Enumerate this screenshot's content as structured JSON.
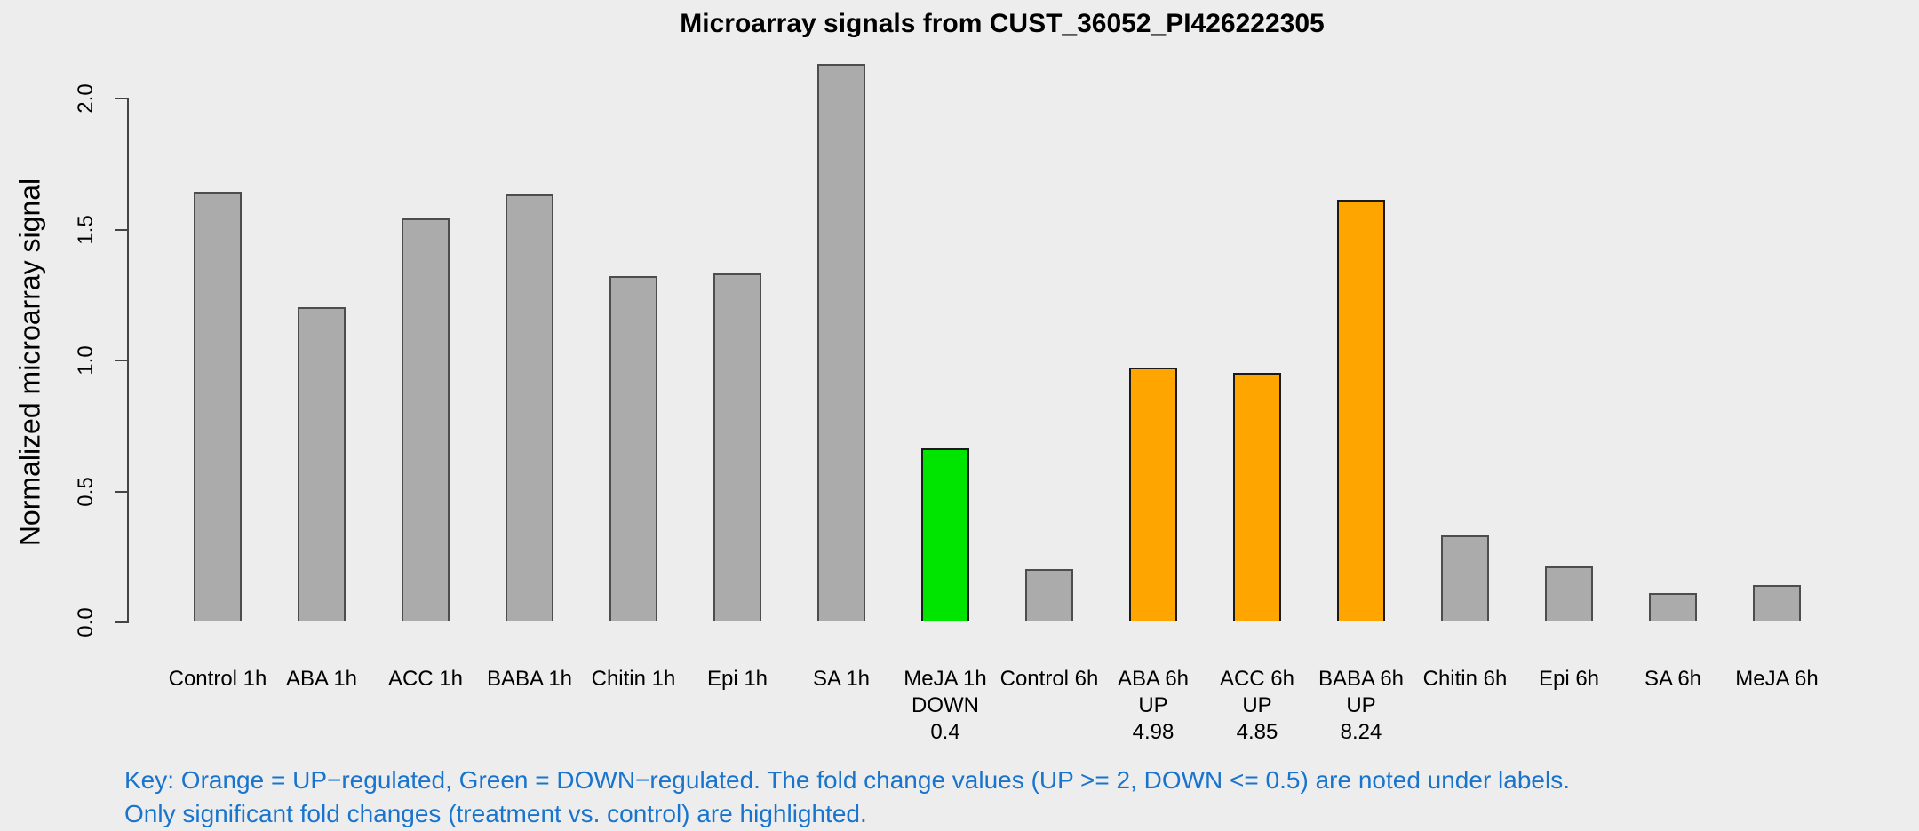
{
  "title": "Microarray signals from CUST_36052_PI426222305",
  "colors": {
    "background": "#EDEDED",
    "axis": "#444444",
    "text": "#000000",
    "key_text": "#1874CD",
    "bar_fills": {
      "gray": "#ABABAB",
      "green": "#00E500",
      "orange": "#FFA500"
    },
    "bar_borders": {
      "gray": "#4D4D4D",
      "green": "#1A1A1A",
      "orange": "#1A1A1A"
    }
  },
  "key": {
    "line1": "Key: Orange = UP−regulated, Green = DOWN−regulated. The fold change values (UP >= 2, DOWN <= 0.5) are noted under labels.",
    "line2": "Only significant fold changes (treatment vs. control) are highlighted."
  },
  "chart_data": {
    "type": "bar",
    "title": "Microarray signals from CUST_36052_PI426222305",
    "xlabel": "",
    "ylabel": "Normalized microarray signal",
    "ylim": [
      0,
      2.0
    ],
    "ytick_labels": [
      "0.0",
      "0.5",
      "1.0",
      "1.5",
      "2.0"
    ],
    "ytick_values": [
      0.0,
      0.5,
      1.0,
      1.5,
      2.0
    ],
    "grid": false,
    "legend_position": "none",
    "categories": [
      "Control 1h",
      "ABA 1h",
      "ACC 1h",
      "BABA 1h",
      "Chitin 1h",
      "Epi 1h",
      "SA 1h",
      "MeJA 1h",
      "Control 6h",
      "ABA 6h",
      "ACC 6h",
      "BABA 6h",
      "Chitin 6h",
      "Epi 6h",
      "SA 6h",
      "MeJA 6h"
    ],
    "values": [
      1.64,
      1.2,
      1.54,
      1.63,
      1.32,
      1.33,
      2.13,
      0.66,
      0.2,
      0.97,
      0.95,
      1.61,
      0.33,
      0.21,
      0.11,
      0.14
    ],
    "bars": [
      {
        "label": "Control 1h",
        "value": 1.64,
        "color": "gray",
        "sub1": "",
        "sub2": ""
      },
      {
        "label": "ABA 1h",
        "value": 1.2,
        "color": "gray",
        "sub1": "",
        "sub2": ""
      },
      {
        "label": "ACC 1h",
        "value": 1.54,
        "color": "gray",
        "sub1": "",
        "sub2": ""
      },
      {
        "label": "BABA 1h",
        "value": 1.63,
        "color": "gray",
        "sub1": "",
        "sub2": ""
      },
      {
        "label": "Chitin 1h",
        "value": 1.32,
        "color": "gray",
        "sub1": "",
        "sub2": ""
      },
      {
        "label": "Epi 1h",
        "value": 1.33,
        "color": "gray",
        "sub1": "",
        "sub2": ""
      },
      {
        "label": "SA 1h",
        "value": 2.13,
        "color": "gray",
        "sub1": "",
        "sub2": ""
      },
      {
        "label": "MeJA 1h",
        "value": 0.66,
        "color": "green",
        "sub1": "DOWN",
        "sub2": "0.4"
      },
      {
        "label": "Control 6h",
        "value": 0.2,
        "color": "gray",
        "sub1": "",
        "sub2": ""
      },
      {
        "label": "ABA 6h",
        "value": 0.97,
        "color": "orange",
        "sub1": "UP",
        "sub2": "4.98"
      },
      {
        "label": "ACC 6h",
        "value": 0.95,
        "color": "orange",
        "sub1": "UP",
        "sub2": "4.85"
      },
      {
        "label": "BABA 6h",
        "value": 1.61,
        "color": "orange",
        "sub1": "UP",
        "sub2": "8.24"
      },
      {
        "label": "Chitin 6h",
        "value": 0.33,
        "color": "gray",
        "sub1": "",
        "sub2": ""
      },
      {
        "label": "Epi 6h",
        "value": 0.21,
        "color": "gray",
        "sub1": "",
        "sub2": ""
      },
      {
        "label": "SA 6h",
        "value": 0.11,
        "color": "gray",
        "sub1": "",
        "sub2": ""
      },
      {
        "label": "MeJA 6h",
        "value": 0.14,
        "color": "gray",
        "sub1": "",
        "sub2": ""
      }
    ]
  }
}
